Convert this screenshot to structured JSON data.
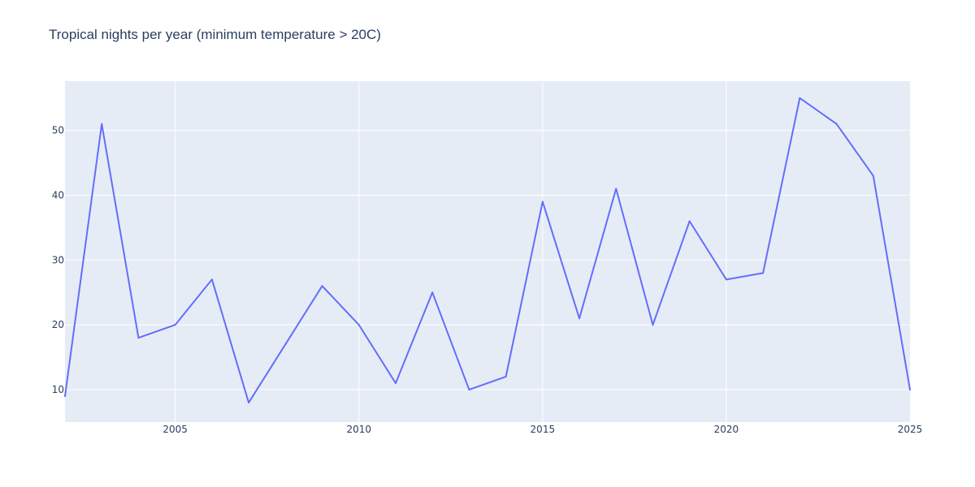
{
  "chart_data": {
    "type": "line",
    "title": "Tropical nights per year (minimum temperature > 20C)",
    "xlabel": "",
    "ylabel": "",
    "x": [
      2002,
      2003,
      2004,
      2005,
      2006,
      2007,
      2008,
      2009,
      2010,
      2011,
      2012,
      2013,
      2014,
      2015,
      2016,
      2017,
      2018,
      2019,
      2020,
      2021,
      2022,
      2023,
      2024,
      2025
    ],
    "series": [
      {
        "values": [
          9,
          51,
          18,
          20,
          27,
          8,
          17,
          26,
          20,
          11,
          25,
          10,
          12,
          39,
          21,
          41,
          20,
          36,
          27,
          28,
          55,
          51,
          43,
          10
        ]
      }
    ],
    "xlim": [
      2002,
      2025
    ],
    "ylim": [
      5,
      57.6
    ],
    "xticks": [
      2005,
      2010,
      2015,
      2020,
      2025
    ],
    "yticks": [
      10,
      20,
      30,
      40,
      50
    ],
    "grid": true,
    "legend": "none",
    "colors": {
      "line": "#636efa",
      "plot_background": "#e5ecf6",
      "grid": "#ffffff",
      "text": "#2a3f5f"
    }
  }
}
